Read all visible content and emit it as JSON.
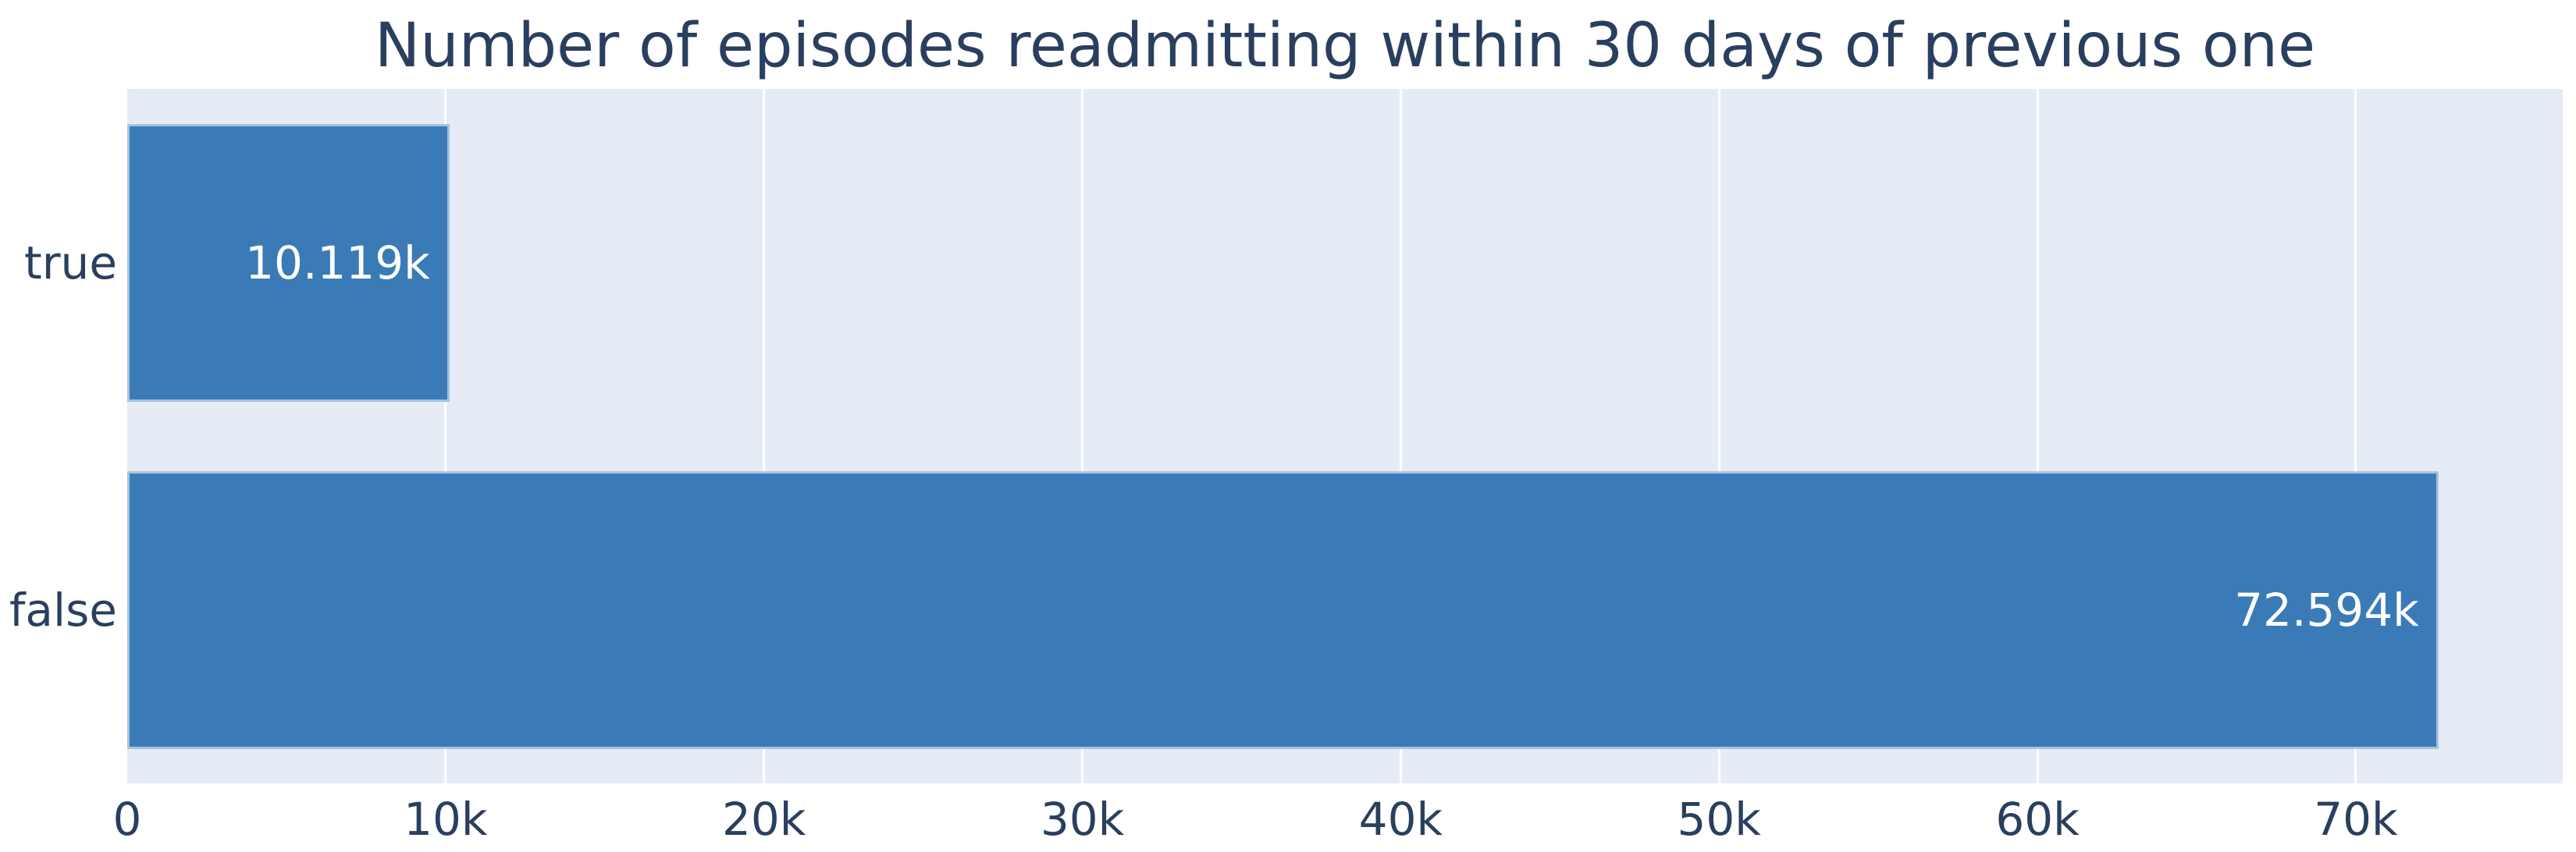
{
  "chart_data": {
    "type": "bar",
    "orientation": "horizontal",
    "title": "Number of episodes readmitting within 30 days of previous one",
    "categories": [
      "true",
      "false"
    ],
    "values": [
      10119,
      72594
    ],
    "value_labels": [
      "10.119k",
      "72.594k"
    ],
    "xlabel": "",
    "ylabel": "",
    "xlim": [
      0,
      76500
    ],
    "xticks": [
      {
        "value": 0,
        "label": "0"
      },
      {
        "value": 10000,
        "label": "10k"
      },
      {
        "value": 20000,
        "label": "20k"
      },
      {
        "value": 30000,
        "label": "30k"
      },
      {
        "value": 40000,
        "label": "40k"
      },
      {
        "value": 50000,
        "label": "50k"
      },
      {
        "value": 60000,
        "label": "60k"
      },
      {
        "value": 70000,
        "label": "70k"
      }
    ],
    "grid": true,
    "legend": false,
    "value_labels_position": "inside-end",
    "colors": {
      "page_bg": "#ffffff",
      "plot_bg": "#e5ecf6",
      "grid_line": "#ffffff",
      "bar_fill": "#3a7bb7",
      "bar_edge": "#a7c2dc",
      "text": "#2a3f5f",
      "value_text": "#ffffff"
    }
  }
}
